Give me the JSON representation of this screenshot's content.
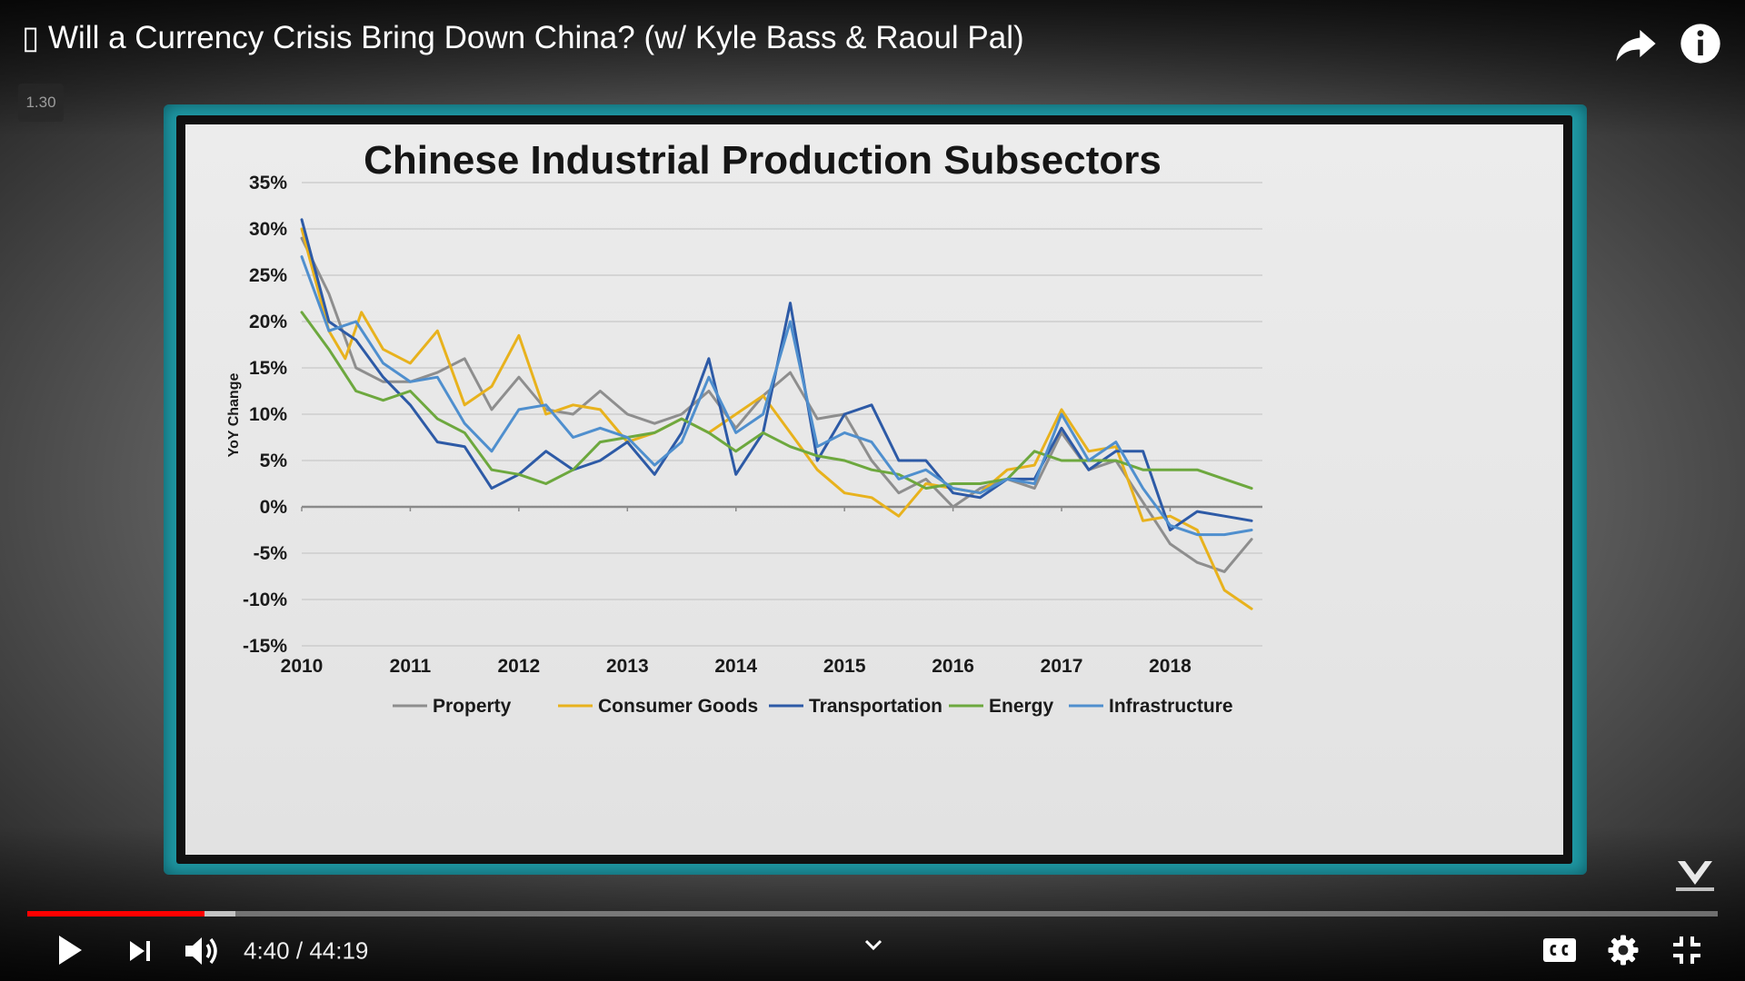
{
  "player": {
    "title": "▯ Will a Currency Crisis Bring Down China? (w/ Kyle Bass & Raoul Pal)",
    "speed_badge": "1.30",
    "current_time": "4:40",
    "time_separator": "/",
    "duration": "44:19",
    "progress_fraction": 0.105,
    "buffer_fraction": 0.123,
    "accent_color": "#ff0000",
    "icons": [
      "share-icon",
      "info-icon",
      "play-icon",
      "next-icon",
      "volume-icon",
      "chevron-down-icon",
      "captions-icon",
      "settings-icon",
      "exit-fullscreen-icon",
      "real-vision-logo"
    ]
  },
  "chart_data": {
    "type": "line",
    "title": "Chinese Industrial Production Subsectors",
    "xlabel": "",
    "ylabel": "YoY Change",
    "ylim": [
      -15,
      35
    ],
    "yticks": [
      35,
      30,
      25,
      20,
      15,
      10,
      5,
      0,
      -5,
      -10,
      -15
    ],
    "ytick_labels": [
      "35%",
      "30%",
      "25%",
      "20%",
      "15%",
      "10%",
      "5%",
      "0%",
      "-5%",
      "-10%",
      "-15%"
    ],
    "xlim": [
      2010,
      2018.85
    ],
    "xticks": [
      2010,
      2011,
      2012,
      2013,
      2014,
      2015,
      2016,
      2017,
      2018
    ],
    "xtick_labels": [
      "2010",
      "2011",
      "2012",
      "2013",
      "2014",
      "2015",
      "2016",
      "2017",
      "2018"
    ],
    "grid": true,
    "legend": "bottom",
    "series": [
      {
        "name": "Property",
        "color": "#8e8e8e",
        "points": [
          [
            2010.0,
            29
          ],
          [
            2010.25,
            23
          ],
          [
            2010.5,
            15
          ],
          [
            2010.75,
            13.5
          ],
          [
            2011.0,
            13.5
          ],
          [
            2011.25,
            14.5
          ],
          [
            2011.5,
            16
          ],
          [
            2011.75,
            10.5
          ],
          [
            2012.0,
            14
          ],
          [
            2012.25,
            10.5
          ],
          [
            2012.5,
            10
          ],
          [
            2012.75,
            12.5
          ],
          [
            2013.0,
            10
          ],
          [
            2013.25,
            9
          ],
          [
            2013.5,
            10
          ],
          [
            2013.75,
            12.5
          ],
          [
            2014.0,
            8.5
          ],
          [
            2014.25,
            12
          ],
          [
            2014.5,
            14.5
          ],
          [
            2014.75,
            9.5
          ],
          [
            2015.0,
            10
          ],
          [
            2015.25,
            5
          ],
          [
            2015.5,
            1.5
          ],
          [
            2015.75,
            3
          ],
          [
            2016.0,
            0
          ],
          [
            2016.25,
            2
          ],
          [
            2016.5,
            3
          ],
          [
            2016.75,
            2
          ],
          [
            2017.0,
            8
          ],
          [
            2017.25,
            4
          ],
          [
            2017.5,
            5
          ],
          [
            2017.75,
            0.5
          ],
          [
            2018.0,
            -4
          ],
          [
            2018.25,
            -6
          ],
          [
            2018.5,
            -7
          ],
          [
            2018.75,
            -3.5
          ]
        ]
      },
      {
        "name": "Consumer Goods",
        "color": "#e8b21d",
        "points": [
          [
            2010.0,
            30
          ],
          [
            2010.25,
            19
          ],
          [
            2010.4,
            16
          ],
          [
            2010.55,
            21
          ],
          [
            2010.75,
            17
          ],
          [
            2011.0,
            15.5
          ],
          [
            2011.25,
            19
          ],
          [
            2011.5,
            11
          ],
          [
            2011.75,
            13
          ],
          [
            2012.0,
            18.5
          ],
          [
            2012.25,
            10
          ],
          [
            2012.5,
            11
          ],
          [
            2012.75,
            10.5
          ],
          [
            2013.0,
            7
          ],
          [
            2013.25,
            8
          ],
          [
            2013.5,
            9.5
          ],
          [
            2013.75,
            8
          ],
          [
            2014.0,
            10
          ],
          [
            2014.25,
            12
          ],
          [
            2014.5,
            8
          ],
          [
            2014.75,
            4
          ],
          [
            2015.0,
            1.5
          ],
          [
            2015.25,
            1
          ],
          [
            2015.5,
            -1
          ],
          [
            2015.75,
            2.5
          ],
          [
            2016.0,
            2
          ],
          [
            2016.25,
            1.5
          ],
          [
            2016.5,
            4
          ],
          [
            2016.75,
            4.5
          ],
          [
            2017.0,
            10.5
          ],
          [
            2017.25,
            6
          ],
          [
            2017.5,
            6.5
          ],
          [
            2017.75,
            -1.5
          ],
          [
            2018.0,
            -1
          ],
          [
            2018.25,
            -2.5
          ],
          [
            2018.5,
            -9
          ],
          [
            2018.75,
            -11
          ]
        ]
      },
      {
        "name": "Transportation",
        "color": "#2d5aa6",
        "points": [
          [
            2010.0,
            31
          ],
          [
            2010.25,
            20
          ],
          [
            2010.5,
            18
          ],
          [
            2010.75,
            14
          ],
          [
            2011.0,
            11
          ],
          [
            2011.25,
            7
          ],
          [
            2011.5,
            6.5
          ],
          [
            2011.75,
            2
          ],
          [
            2012.0,
            3.5
          ],
          [
            2012.25,
            6
          ],
          [
            2012.5,
            4
          ],
          [
            2012.75,
            5
          ],
          [
            2013.0,
            7
          ],
          [
            2013.25,
            3.5
          ],
          [
            2013.5,
            8
          ],
          [
            2013.75,
            16
          ],
          [
            2014.0,
            3.5
          ],
          [
            2014.25,
            8
          ],
          [
            2014.5,
            22
          ],
          [
            2014.75,
            5
          ],
          [
            2015.0,
            10
          ],
          [
            2015.25,
            11
          ],
          [
            2015.5,
            5
          ],
          [
            2015.75,
            5
          ],
          [
            2016.0,
            1.5
          ],
          [
            2016.25,
            1
          ],
          [
            2016.5,
            3
          ],
          [
            2016.75,
            3
          ],
          [
            2017.0,
            8.5
          ],
          [
            2017.25,
            4
          ],
          [
            2017.5,
            6
          ],
          [
            2017.75,
            6
          ],
          [
            2018.0,
            -2.5
          ],
          [
            2018.25,
            -0.5
          ],
          [
            2018.5,
            -1
          ],
          [
            2018.75,
            -1.5
          ]
        ]
      },
      {
        "name": "Energy",
        "color": "#6da83e",
        "points": [
          [
            2010.0,
            21
          ],
          [
            2010.25,
            17
          ],
          [
            2010.5,
            12.5
          ],
          [
            2010.75,
            11.5
          ],
          [
            2011.0,
            12.5
          ],
          [
            2011.25,
            9.5
          ],
          [
            2011.5,
            8
          ],
          [
            2011.75,
            4
          ],
          [
            2012.0,
            3.5
          ],
          [
            2012.25,
            2.5
          ],
          [
            2012.5,
            4
          ],
          [
            2012.75,
            7
          ],
          [
            2013.0,
            7.5
          ],
          [
            2013.25,
            8
          ],
          [
            2013.5,
            9.5
          ],
          [
            2013.75,
            8
          ],
          [
            2014.0,
            6
          ],
          [
            2014.25,
            8
          ],
          [
            2014.5,
            6.5
          ],
          [
            2014.75,
            5.5
          ],
          [
            2015.0,
            5
          ],
          [
            2015.25,
            4
          ],
          [
            2015.5,
            3.5
          ],
          [
            2015.75,
            2
          ],
          [
            2016.0,
            2.5
          ],
          [
            2016.25,
            2.5
          ],
          [
            2016.5,
            3
          ],
          [
            2016.75,
            6
          ],
          [
            2017.0,
            5
          ],
          [
            2017.25,
            5
          ],
          [
            2017.5,
            5
          ],
          [
            2017.75,
            4
          ],
          [
            2018.0,
            4
          ],
          [
            2018.25,
            4
          ],
          [
            2018.5,
            3
          ],
          [
            2018.75,
            2
          ]
        ]
      },
      {
        "name": "Infrastructure",
        "color": "#4f8fce",
        "points": [
          [
            2010.0,
            27
          ],
          [
            2010.25,
            19
          ],
          [
            2010.5,
            20
          ],
          [
            2010.75,
            15.5
          ],
          [
            2011.0,
            13.5
          ],
          [
            2011.25,
            14
          ],
          [
            2011.5,
            9
          ],
          [
            2011.75,
            6
          ],
          [
            2012.0,
            10.5
          ],
          [
            2012.25,
            11
          ],
          [
            2012.5,
            7.5
          ],
          [
            2012.75,
            8.5
          ],
          [
            2013.0,
            7.5
          ],
          [
            2013.25,
            4.5
          ],
          [
            2013.5,
            7
          ],
          [
            2013.75,
            14
          ],
          [
            2014.0,
            8
          ],
          [
            2014.25,
            10
          ],
          [
            2014.5,
            20
          ],
          [
            2014.75,
            6.5
          ],
          [
            2015.0,
            8
          ],
          [
            2015.25,
            7
          ],
          [
            2015.5,
            3
          ],
          [
            2015.75,
            4
          ],
          [
            2016.0,
            2
          ],
          [
            2016.25,
            1.5
          ],
          [
            2016.5,
            3
          ],
          [
            2016.75,
            2.5
          ],
          [
            2017.0,
            10
          ],
          [
            2017.25,
            5
          ],
          [
            2017.5,
            7
          ],
          [
            2017.75,
            2
          ],
          [
            2018.0,
            -2
          ],
          [
            2018.25,
            -3
          ],
          [
            2018.5,
            -3
          ],
          [
            2018.75,
            -2.5
          ]
        ]
      }
    ]
  }
}
